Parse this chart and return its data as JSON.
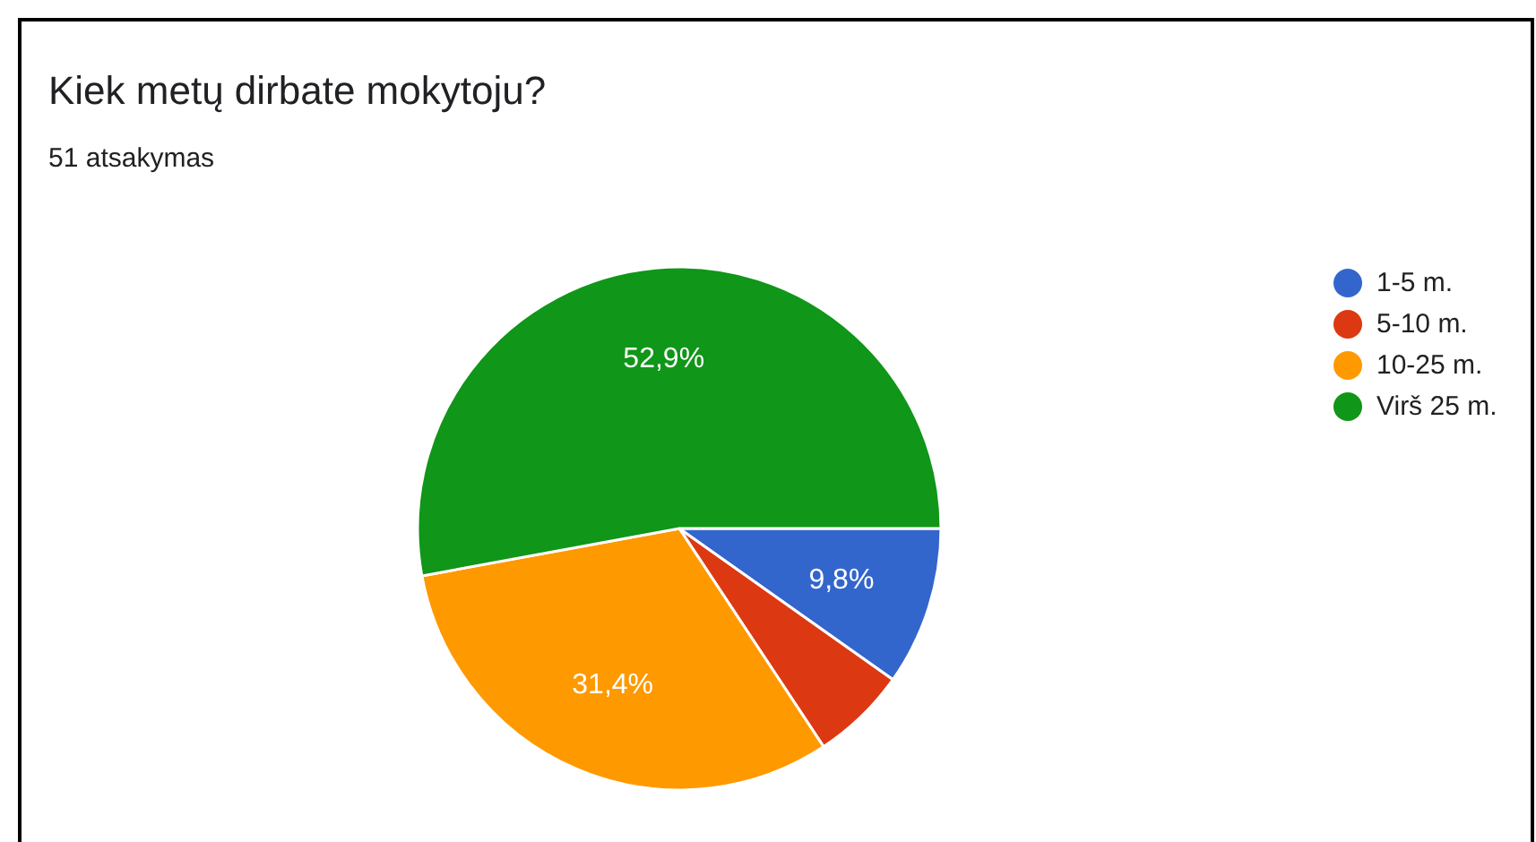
{
  "chart_data": {
    "type": "pie",
    "title": "Kiek metų dirbate mokytoju?",
    "subtitle": "51 atsakymas",
    "categories": [
      "1-5 m.",
      "5-10 m.",
      "10-25 m.",
      "Virš 25 m."
    ],
    "values": [
      9.8,
      5.9,
      31.4,
      52.9
    ],
    "colors": [
      "#3366cc",
      "#dc3912",
      "#ff9900",
      "#109618"
    ],
    "value_labels": [
      "9,8%",
      null,
      "31,4%",
      "52,9%"
    ],
    "legend": "right"
  }
}
